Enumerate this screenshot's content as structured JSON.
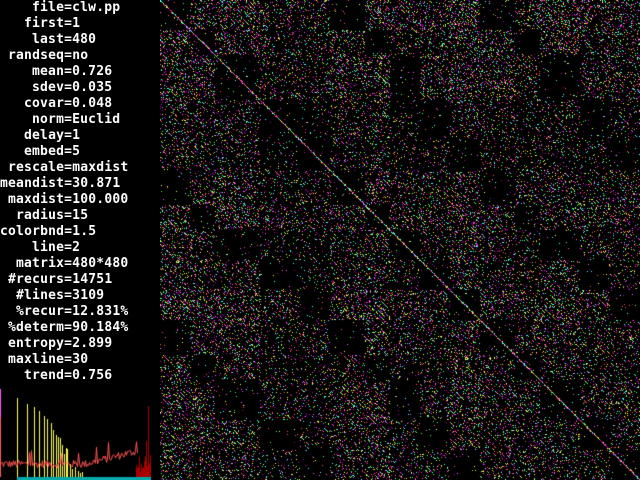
{
  "parameters": [
    {
      "text": "file=clw.pp",
      "indent": 4
    },
    {
      "text": "first=1",
      "indent": 3
    },
    {
      "text": "last=480",
      "indent": 4
    },
    {
      "text": "randseq=no",
      "indent": 1
    },
    {
      "text": "mean=0.726",
      "indent": 4
    },
    {
      "text": "sdev=0.035",
      "indent": 4
    },
    {
      "text": "covar=0.048",
      "indent": 3
    },
    {
      "text": "norm=Euclid",
      "indent": 4
    },
    {
      "text": "delay=1",
      "indent": 3
    },
    {
      "text": "embed=5",
      "indent": 3
    },
    {
      "text": "rescale=maxdist",
      "indent": 1
    },
    {
      "text": "meandist=30.871",
      "indent": 0
    },
    {
      "text": "maxdist=100.000",
      "indent": 1
    },
    {
      "text": "radius=15",
      "indent": 2
    },
    {
      "text": "colorbnd=1.5",
      "indent": 0
    },
    {
      "text": "line=2",
      "indent": 4
    },
    {
      "text": "matrix=480*480",
      "indent": 2
    },
    {
      "text": "#recurs=14751",
      "indent": 1
    },
    {
      "text": "#lines=3109",
      "indent": 2
    },
    {
      "text": "%recur=12.831%",
      "indent": 2
    },
    {
      "text": "%determ=90.184%",
      "indent": 1
    },
    {
      "text": "entropy=2.899",
      "indent": 1
    },
    {
      "text": "maxline=30",
      "indent": 1
    },
    {
      "text": "trend=0.756",
      "indent": 3
    }
  ],
  "colors": {
    "background": "#000000",
    "text": "#ffffff",
    "histogram_lines": "#ffff55",
    "histogram_distance": "#ff5555",
    "histogram_far": "#aa0000",
    "histogram_baseline": "#00aaaa",
    "histogram_marker": "#ff55ff",
    "plot_palette": [
      "#ff55ff",
      "#ff5555",
      "#ffff55",
      "#55ff55",
      "#55ffff",
      "#aa00aa"
    ]
  }
}
